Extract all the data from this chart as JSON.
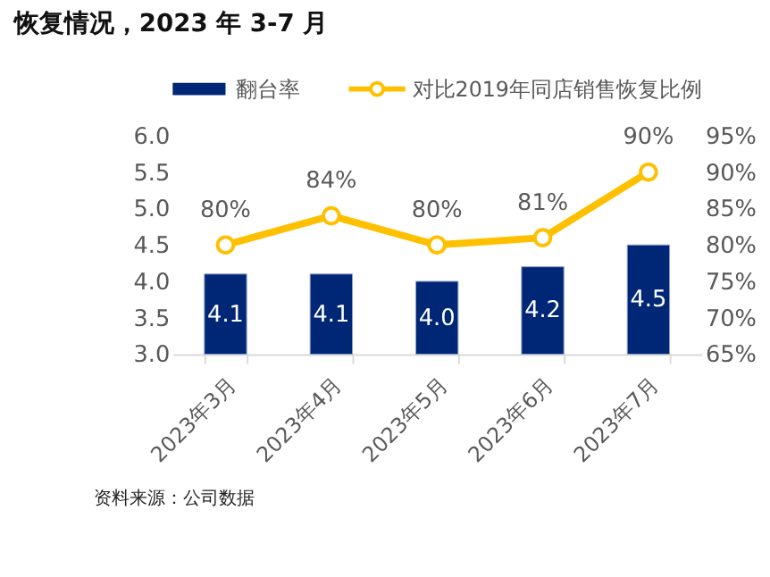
{
  "chart_data": {
    "type": "bar",
    "title": "恢复情况，2023 年 3-7 月",
    "categories": [
      "2023年3月",
      "2023年4月",
      "2023年5月",
      "2023年6月",
      "2023年7月"
    ],
    "series": [
      {
        "name": "翻台率",
        "color": "#002776",
        "values": [
          4.1,
          4.1,
          4.0,
          4.2,
          4.5
        ],
        "value_labels": [
          "4.1",
          "4.1",
          "4.0",
          "4.2",
          "4.5"
        ]
      },
      {
        "name": "对比2019年同店销售恢复比例",
        "type": "line",
        "axis": "y2",
        "color": "#ffc000",
        "values": [
          80,
          84,
          80,
          81,
          90
        ],
        "value_labels": [
          "80%",
          "84%",
          "80%",
          "81%",
          "90%"
        ]
      }
    ],
    "ylim": [
      3.0,
      6.0
    ],
    "yticks": [
      {
        "value": 3.0,
        "label": "3.0"
      },
      {
        "value": 3.5,
        "label": "3.5"
      },
      {
        "value": 4.0,
        "label": "4.0"
      },
      {
        "value": 4.5,
        "label": "4.5"
      },
      {
        "value": 5.0,
        "label": "5.0"
      },
      {
        "value": 5.5,
        "label": "5.5"
      },
      {
        "value": 6.0,
        "label": "6.0"
      }
    ],
    "y2lim": [
      65,
      95
    ],
    "y2ticks": [
      {
        "value": 65,
        "label": "65%"
      },
      {
        "value": 70,
        "label": "70%"
      },
      {
        "value": 75,
        "label": "75%"
      },
      {
        "value": 80,
        "label": "80%"
      },
      {
        "value": 85,
        "label": "85%"
      },
      {
        "value": 90,
        "label": "90%"
      },
      {
        "value": 95,
        "label": "95%"
      }
    ],
    "grid": false,
    "legend": "top",
    "marker": "circle",
    "line_style": "solid",
    "annotations": [
      "资料来源：公司数据"
    ]
  }
}
